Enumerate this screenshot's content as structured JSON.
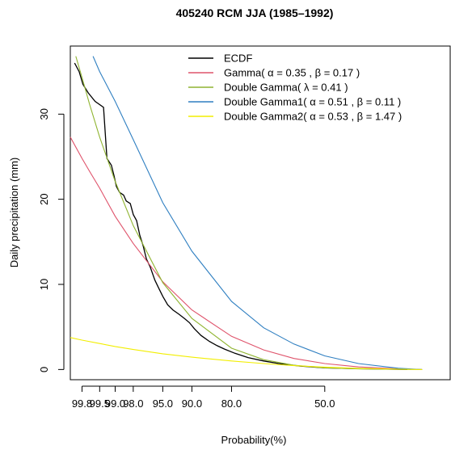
{
  "chart_data": {
    "type": "line",
    "title": "405240 RCM JJA (1985–1992)",
    "xlabel": "Probability(%)",
    "ylabel": "Daily precipitation (mm)",
    "x_scale": "log(-log(1 - p))",
    "xlim": [
      99.9,
      20
    ],
    "ylim": [
      -1.2,
      38
    ],
    "x_ticks": [
      {
        "value": 99.8,
        "label": "99.8"
      },
      {
        "value": 99.5,
        "label": "99.5"
      },
      {
        "value": 99.0,
        "label": "99.0"
      },
      {
        "value": 98.0,
        "label": "98.0"
      },
      {
        "value": 95.0,
        "label": "95.0"
      },
      {
        "value": 90.0,
        "label": "90.0"
      },
      {
        "value": 80.0,
        "label": "80.0"
      },
      {
        "value": 50.0,
        "label": "50.0"
      }
    ],
    "y_ticks": [
      {
        "value": 0,
        "label": "0"
      },
      {
        "value": 10,
        "label": "10"
      },
      {
        "value": 20,
        "label": "20"
      },
      {
        "value": 30,
        "label": "30"
      }
    ],
    "grid": false,
    "legend_position": "top-right",
    "series": [
      {
        "name": "ECDF",
        "color": "#000000",
        "x": [
          99.87,
          99.83,
          99.79,
          99.72,
          99.6,
          99.4,
          99.3,
          99.15,
          99.05,
          98.95,
          98.8,
          98.6,
          98.45,
          98.2,
          98.0,
          97.75,
          97.5,
          97.2,
          96.9,
          96.5,
          96.0,
          95.5,
          95.0,
          94.3,
          93.5,
          92.5,
          91.5,
          90.5,
          89.5,
          88.0,
          86.0,
          84.0,
          82.0,
          79.0,
          75.0,
          70.0,
          65.0,
          58.0,
          50.0,
          40.0,
          33.0,
          28.0
        ],
        "y": [
          36.0,
          35.0,
          33.5,
          32.5,
          31.5,
          30.8,
          24.8,
          24.0,
          22.8,
          21.5,
          20.8,
          20.5,
          19.8,
          19.5,
          18.2,
          17.5,
          15.8,
          14.5,
          13.0,
          12.0,
          10.5,
          9.5,
          8.6,
          7.6,
          7.0,
          6.5,
          6.0,
          5.5,
          4.8,
          4.0,
          3.3,
          2.8,
          2.4,
          1.9,
          1.4,
          1.0,
          0.7,
          0.4,
          0.2,
          0.1,
          0.05,
          0.0
        ]
      },
      {
        "name": "Gamma( α = 0.35 , β = 0.17 )",
        "color": "#df536b",
        "x": [
          99.9,
          99.8,
          99.7,
          99.5,
          99.0,
          98.0,
          95.0,
          90.0,
          80.0,
          70.0,
          60.0,
          50.0,
          40.0,
          30.0,
          25.0
        ],
        "y": [
          27.3,
          24.8,
          23.3,
          21.3,
          18.0,
          14.8,
          10.3,
          7.0,
          3.9,
          2.3,
          1.3,
          0.7,
          0.3,
          0.08,
          0.0
        ]
      },
      {
        "name": "Double Gamma( λ = 0.41 )",
        "color": "#8fb430",
        "x": [
          99.86,
          99.8,
          99.7,
          99.5,
          99.0,
          98.0,
          95.0,
          90.0,
          80.0,
          70.0,
          60.0,
          50.0,
          40.0,
          30.0,
          25.0
        ],
        "y": [
          36.8,
          34.3,
          31.2,
          27.3,
          22.1,
          16.9,
          10.2,
          6.0,
          2.5,
          1.15,
          0.5,
          0.2,
          0.07,
          0.02,
          0.0
        ]
      },
      {
        "name": "Double Gamma1( α = 0.51 , β = 0.11 )",
        "color": "#2f7fc1",
        "x": [
          99.64,
          99.5,
          99.0,
          98.0,
          95.0,
          90.0,
          80.0,
          70.0,
          60.0,
          50.0,
          40.0,
          30.0,
          25.0
        ],
        "y": [
          36.8,
          35.0,
          31.5,
          27.0,
          19.6,
          13.9,
          8.0,
          4.9,
          3.0,
          1.6,
          0.7,
          0.15,
          0.0
        ]
      },
      {
        "name": "Double Gamma2( α = 0.53 , β = 1.47 )",
        "color": "#f2ee00",
        "x": [
          99.9,
          99.8,
          99.5,
          99.0,
          98.0,
          95.0,
          90.0,
          80.0,
          70.0,
          60.0,
          50.0,
          40.0,
          30.0,
          25.0
        ],
        "y": [
          3.75,
          3.45,
          3.05,
          2.7,
          2.35,
          1.85,
          1.45,
          1.0,
          0.7,
          0.45,
          0.28,
          0.14,
          0.04,
          0.0
        ]
      }
    ]
  }
}
